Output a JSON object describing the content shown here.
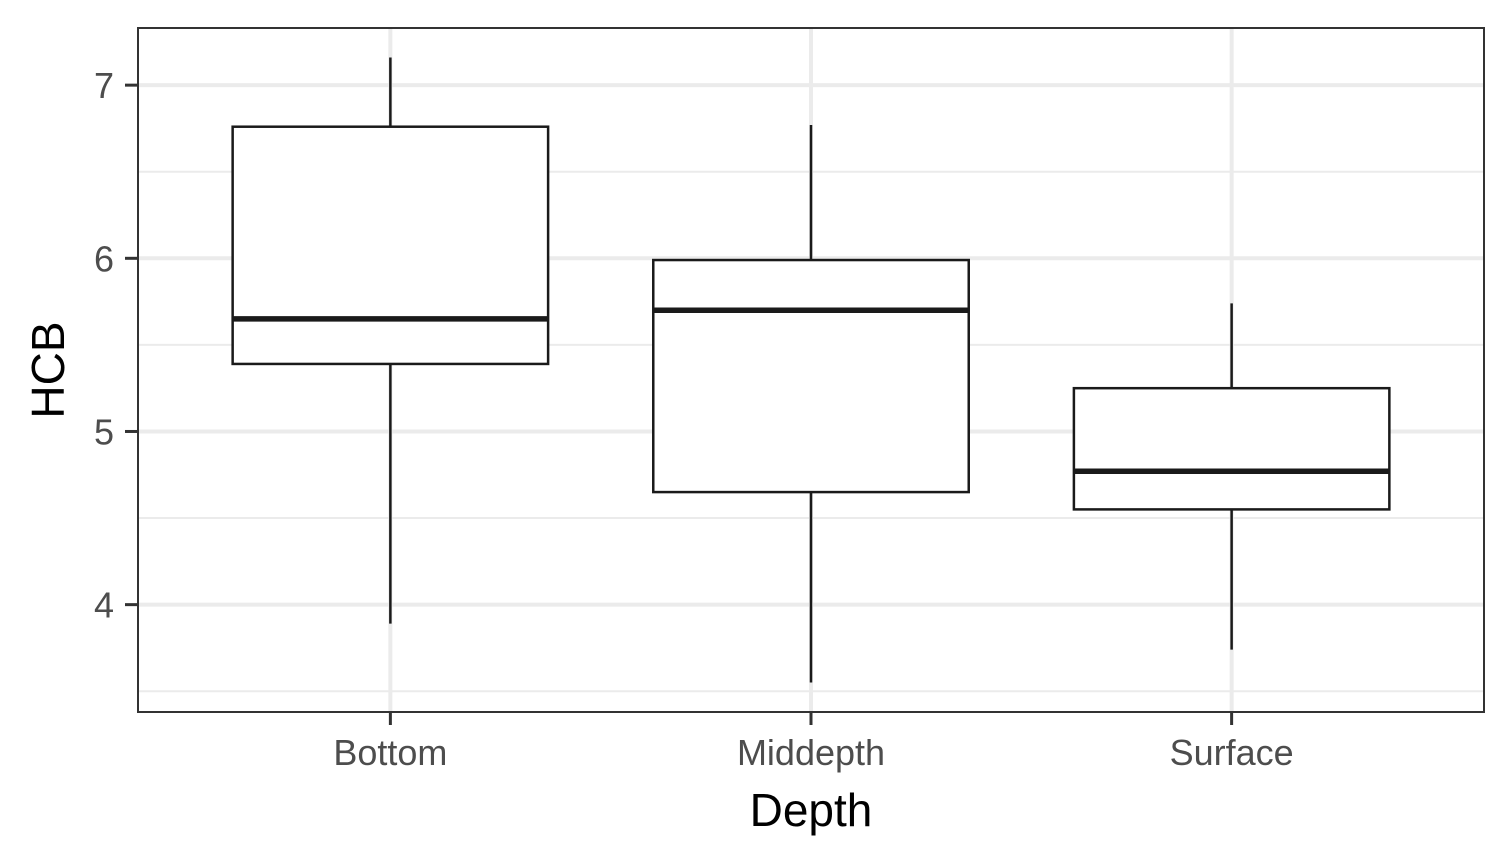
{
  "chart_data": {
    "type": "box",
    "xlabel": "Depth",
    "ylabel": "HCB",
    "categories": [
      "Bottom",
      "Middepth",
      "Surface"
    ],
    "boxes": [
      {
        "category": "Bottom",
        "whisker_low": 3.89,
        "q1": 5.39,
        "median": 5.65,
        "q3": 6.76,
        "whisker_high": 7.16
      },
      {
        "category": "Middepth",
        "whisker_low": 3.55,
        "q1": 4.65,
        "median": 5.7,
        "q3": 5.99,
        "whisker_high": 6.77
      },
      {
        "category": "Surface",
        "whisker_low": 3.74,
        "q1": 4.55,
        "median": 4.77,
        "q3": 5.25,
        "whisker_high": 5.74
      }
    ],
    "yticks": [
      4,
      5,
      6,
      7
    ],
    "ylim": [
      3.38,
      7.33
    ],
    "grid": true
  }
}
